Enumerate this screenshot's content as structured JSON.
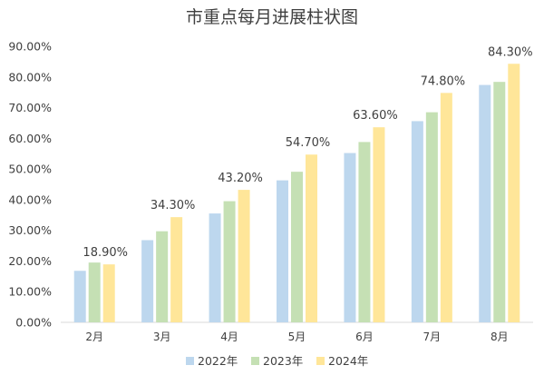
{
  "chart_data": {
    "type": "bar",
    "title": "市重点每月进展柱状图",
    "categories": [
      "2月",
      "3月",
      "4月",
      "5月",
      "6月",
      "7月",
      "8月"
    ],
    "series": [
      {
        "name": "2022年",
        "color": "#BDD7EE",
        "values": [
          16.8,
          26.8,
          35.5,
          46.3,
          55.2,
          65.6,
          77.4
        ]
      },
      {
        "name": "2023年",
        "color": "#C5E0B4",
        "values": [
          19.5,
          29.7,
          39.5,
          49.1,
          58.8,
          68.5,
          78.4
        ]
      },
      {
        "name": "2024年",
        "color": "#FFE699",
        "values": [
          18.9,
          34.3,
          43.2,
          54.7,
          63.6,
          74.8,
          84.3
        ]
      }
    ],
    "data_labels": {
      "series": "2024年",
      "texts": [
        "18.90%",
        "34.30%",
        "43.20%",
        "54.70%",
        "63.60%",
        "74.80%",
        "84.30%"
      ]
    },
    "y_ticks": [
      "0.00%",
      "10.00%",
      "20.00%",
      "30.00%",
      "40.00%",
      "50.00%",
      "60.00%",
      "70.00%",
      "80.00%",
      "90.00%"
    ],
    "ylim": [
      0,
      90
    ],
    "xlabel": "",
    "ylabel": "",
    "grid": false,
    "legend_position": "bottom"
  }
}
